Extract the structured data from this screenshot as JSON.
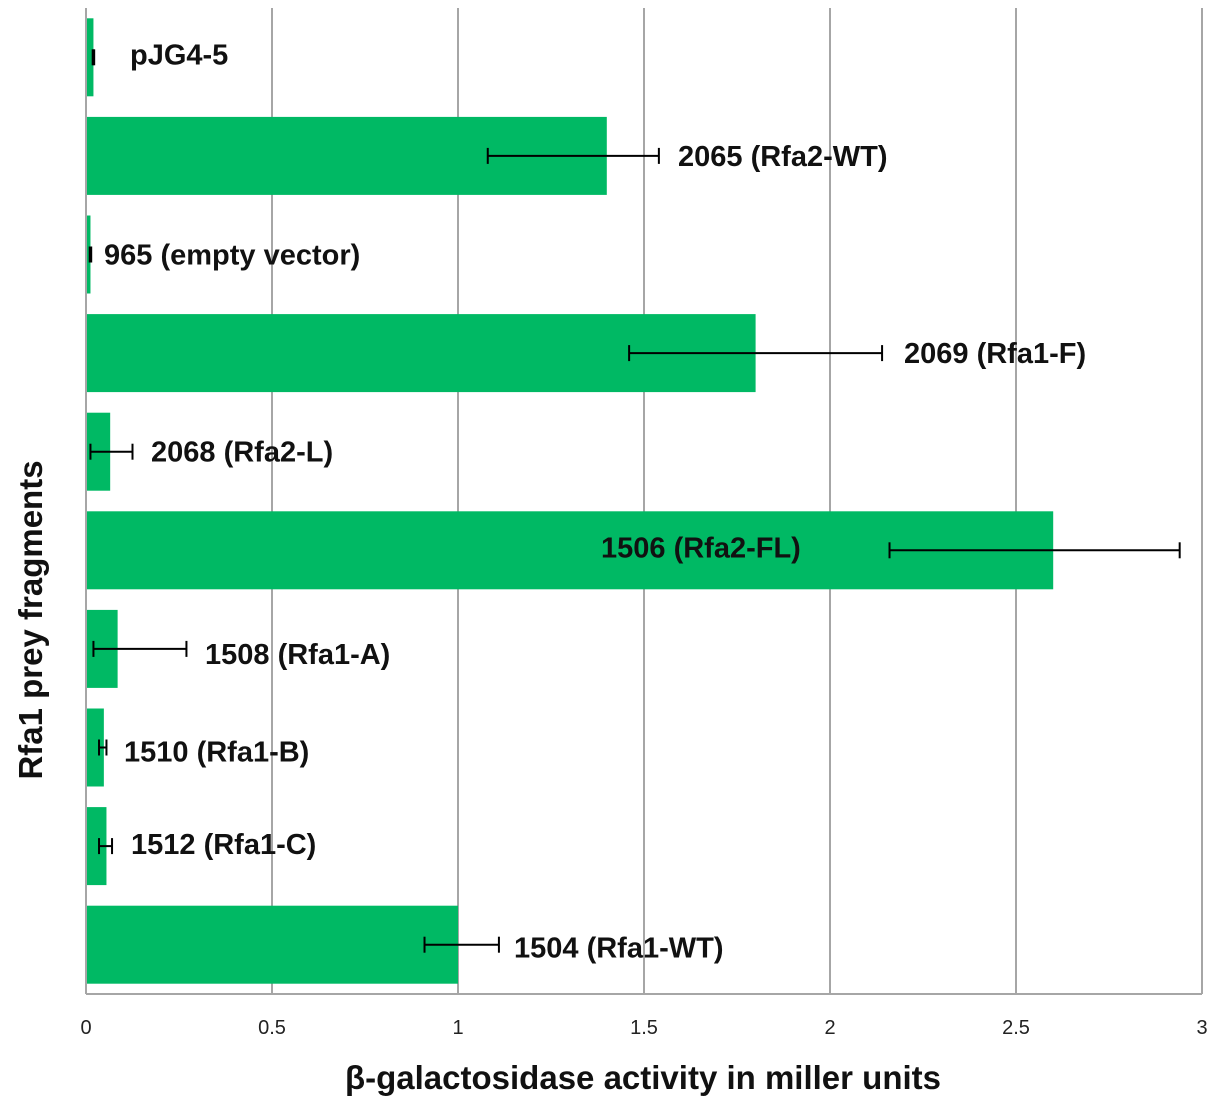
{
  "chart_data": {
    "type": "bar",
    "orientation": "horizontal",
    "title": "",
    "xlabel": "β-galactosidase activity in miller units",
    "ylabel": "Rfa1 prey fragments",
    "xlim": [
      0,
      3
    ],
    "x_ticks": [
      0,
      0.5,
      1,
      1.5,
      2,
      2.5,
      3
    ],
    "x_tick_labels": [
      "0",
      "0.5",
      "1",
      "1.5",
      "2",
      "2.5",
      "3"
    ],
    "grid": "vertical gridlines",
    "legend": "none",
    "bar_color": "#00b964",
    "categories": [
      "pJG4-5",
      "2065 (Rfa2-WT)",
      "965 (empty vector)",
      "2069 (Rfa1-F)",
      "2068 (Rfa2-L)",
      "1506 (Rfa2-FL)",
      "1508 (Rfa1-A)",
      "1510 (Rfa1-B)",
      "1512 (Rfa1-C)",
      "1504 (Rfa1-WT)"
    ],
    "values": [
      0.02,
      1.4,
      0.012,
      1.8,
      0.065,
      2.6,
      0.085,
      0.048,
      0.055,
      1.0
    ],
    "error_low": [
      0.018,
      1.08,
      0.01,
      1.46,
      0.012,
      2.16,
      0.02,
      0.035,
      0.035,
      0.91
    ],
    "error_high": [
      0.022,
      1.54,
      0.014,
      2.14,
      0.125,
      2.94,
      0.27,
      0.055,
      0.07,
      1.11
    ]
  }
}
